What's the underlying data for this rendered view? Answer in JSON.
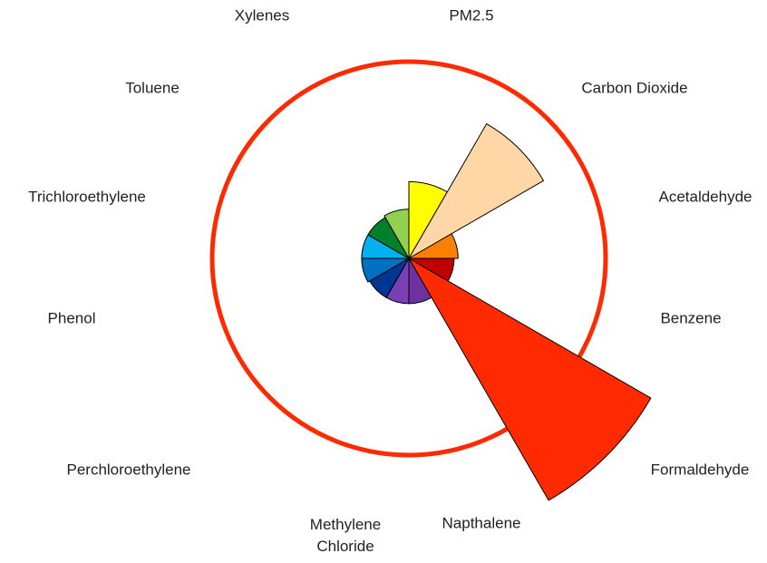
{
  "chart_data": {
    "type": "polar_area",
    "categories": [
      "PM2.5",
      "Carbon Dioxide",
      "Acetaldehyde",
      "Benzene",
      "Formaldehyde",
      "Napthalene",
      "Methylene Chloride",
      "Perchloroethylene",
      "Phenol",
      "Trichloroethylene",
      "Toluene",
      "Xylenes"
    ],
    "values": [
      0.39,
      0.79,
      0.25,
      0.23,
      1.42,
      0.23,
      0.23,
      0.23,
      0.24,
      0.24,
      0.24,
      0.25
    ],
    "colors": [
      "#ffff00",
      "#ffd6a5",
      "#ff8000",
      "#c00000",
      "#ff2a00",
      "#7030a0",
      "#7b3fb5",
      "#003591",
      "#0070c0",
      "#00b0f0",
      "#00802a",
      "#92d050"
    ],
    "reference": 1,
    "reference_color": "#ff2a00"
  }
}
